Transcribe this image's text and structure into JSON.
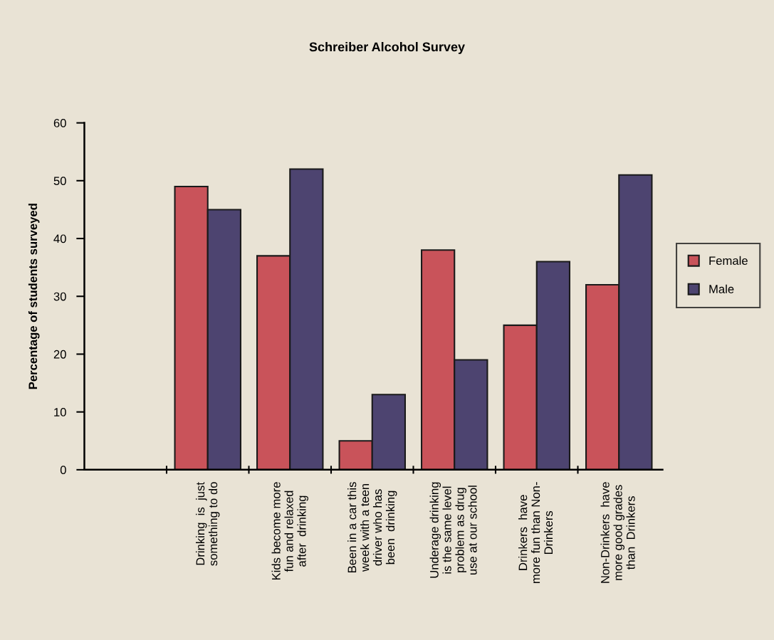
{
  "chart_data": {
    "type": "bar",
    "title": "Schreiber Alcohol Survey",
    "ylabel": "Percentage of students surveyed",
    "categories": [
      null,
      "Drinking  is  just\nsomething to do",
      "Kids become more\nfun and relaxed\nafter  drinking",
      "Been in a car this\nweek with a teen\ndriver who has\nbeen  drinking",
      "Underage drinking\nis the same level\nproblem as drug\nuse at our school",
      "Drinkers  have\nmore fun than Non-\nDrinkers",
      "Non-Drinkers  have\nmore good grades\nthan  Drinkers"
    ],
    "series": [
      {
        "name": "Female",
        "color": "#c9535a",
        "values": [
          null,
          49,
          37,
          5,
          38,
          25,
          32
        ]
      },
      {
        "name": "Male",
        "color": "#4d4470",
        "values": [
          null,
          45,
          52,
          13,
          19,
          36,
          51
        ]
      }
    ],
    "ylim": [
      0,
      60
    ],
    "yticks": [
      0,
      10,
      20,
      30,
      40,
      50,
      60
    ],
    "grid": false,
    "legend": "right"
  }
}
